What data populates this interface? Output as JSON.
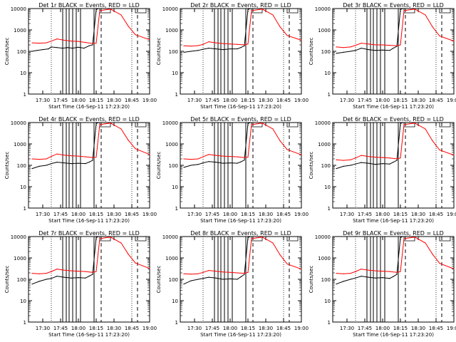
{
  "colors": {
    "events": "#000000",
    "lld": "#ff0000",
    "background": "#ffffff"
  },
  "shared": {
    "ylabel": "Counts/sec",
    "xlabel": "Start Time (16-Sep-11 17:23:20)",
    "x_ticks": [
      "17:30",
      "17:45",
      "18:00",
      "18:15",
      "18:30",
      "18:45",
      "19:00"
    ],
    "y_ticks": [
      "1",
      "10",
      "100",
      "1000",
      "10000"
    ],
    "ylim": [
      1,
      10000
    ],
    "y_scale": "log"
  },
  "chart_data": [
    {
      "type": "line",
      "title": "Det 1r BLACK = Events, RED = LLD",
      "series": [
        {
          "name": "Events",
          "x": [
            17.35,
            17.42,
            17.5,
            17.58,
            17.62,
            17.7,
            17.78,
            17.85,
            17.92,
            18.0,
            18.08,
            18.15,
            18.2,
            18.25,
            18.28
          ],
          "values": [
            100,
            110,
            120,
            130,
            160,
            150,
            140,
            150,
            140,
            155,
            140,
            180,
            200,
            9000,
            10000
          ]
        },
        {
          "name": "LLD",
          "x": [
            17.35,
            17.45,
            17.55,
            17.62,
            17.7,
            17.8,
            17.9,
            18.0,
            18.1,
            18.2,
            18.25,
            18.3,
            18.45,
            18.6,
            18.7,
            18.8,
            19.0
          ],
          "values": [
            250,
            240,
            250,
            300,
            380,
            330,
            300,
            290,
            260,
            230,
            240,
            8000,
            9500,
            5000,
            1500,
            600,
            350
          ]
        }
      ]
    },
    {
      "type": "line",
      "title": "Det 2r BLACK = Events, RED = LLD",
      "series": [
        {
          "name": "Events",
          "x": [
            17.35,
            17.45,
            17.55,
            17.62,
            17.7,
            17.8,
            17.9,
            18.0,
            18.1,
            18.15,
            18.2,
            18.25,
            18.28
          ],
          "values": [
            90,
            100,
            110,
            125,
            140,
            130,
            120,
            130,
            130,
            150,
            180,
            9000,
            10000
          ]
        },
        {
          "name": "LLD",
          "x": [
            17.35,
            17.45,
            17.55,
            17.62,
            17.7,
            17.8,
            17.9,
            18.0,
            18.1,
            18.2,
            18.25,
            18.3,
            18.45,
            18.6,
            18.7,
            18.8,
            19.0
          ],
          "values": [
            180,
            175,
            185,
            210,
            280,
            250,
            230,
            220,
            210,
            200,
            220,
            8000,
            9500,
            5000,
            1400,
            550,
            330
          ]
        }
      ]
    },
    {
      "type": "line",
      "title": "Det 3r BLACK = Events, RED = LLD",
      "series": [
        {
          "name": "Events",
          "x": [
            17.35,
            17.45,
            17.55,
            17.62,
            17.7,
            17.8,
            17.9,
            18.0,
            18.1,
            18.15,
            18.2,
            18.25,
            18.28
          ],
          "values": [
            80,
            90,
            100,
            110,
            140,
            120,
            110,
            115,
            110,
            140,
            170,
            9000,
            10000
          ]
        },
        {
          "name": "LLD",
          "x": [
            17.35,
            17.45,
            17.55,
            17.62,
            17.7,
            17.8,
            17.9,
            18.0,
            18.1,
            18.2,
            18.25,
            18.3,
            18.45,
            18.6,
            18.7,
            18.8,
            19.0
          ],
          "values": [
            160,
            150,
            160,
            190,
            240,
            220,
            200,
            200,
            190,
            180,
            200,
            8000,
            9500,
            5000,
            1400,
            520,
            300
          ]
        }
      ]
    },
    {
      "type": "line",
      "title": "Det 4r BLACK = Events, RED = LLD",
      "series": [
        {
          "name": "Events",
          "x": [
            17.35,
            17.45,
            17.55,
            17.62,
            17.7,
            17.8,
            17.9,
            18.0,
            18.1,
            18.15,
            18.2,
            18.25,
            18.28
          ],
          "values": [
            70,
            90,
            100,
            120,
            140,
            130,
            120,
            125,
            120,
            140,
            170,
            9000,
            10000
          ]
        },
        {
          "name": "LLD",
          "x": [
            17.35,
            17.45,
            17.55,
            17.62,
            17.7,
            17.8,
            17.9,
            18.0,
            18.1,
            18.2,
            18.25,
            18.3,
            18.45,
            18.6,
            18.7,
            18.8,
            19.0
          ],
          "values": [
            200,
            190,
            200,
            260,
            340,
            300,
            280,
            270,
            250,
            230,
            240,
            8000,
            9500,
            5000,
            1500,
            600,
            320
          ]
        }
      ]
    },
    {
      "type": "line",
      "title": "Det 5r BLACK = Events, RED = LLD",
      "series": [
        {
          "name": "Events",
          "x": [
            17.35,
            17.45,
            17.55,
            17.62,
            17.7,
            17.8,
            17.9,
            18.0,
            18.1,
            18.15,
            18.2,
            18.25,
            18.28
          ],
          "values": [
            80,
            100,
            110,
            130,
            150,
            140,
            125,
            130,
            125,
            145,
            175,
            9000,
            10000
          ]
        },
        {
          "name": "LLD",
          "x": [
            17.35,
            17.45,
            17.55,
            17.62,
            17.7,
            17.8,
            17.9,
            18.0,
            18.1,
            18.2,
            18.25,
            18.3,
            18.45,
            18.6,
            18.7,
            18.8,
            19.0
          ],
          "values": [
            200,
            190,
            200,
            250,
            320,
            290,
            270,
            260,
            250,
            230,
            240,
            8000,
            9500,
            5000,
            1400,
            550,
            310
          ]
        }
      ]
    },
    {
      "type": "line",
      "title": "Det 6r BLACK = Events, RED = LLD",
      "series": [
        {
          "name": "Events",
          "x": [
            17.35,
            17.45,
            17.55,
            17.62,
            17.7,
            17.8,
            17.9,
            18.0,
            18.1,
            18.15,
            18.2,
            18.25,
            18.28
          ],
          "values": [
            70,
            90,
            100,
            115,
            135,
            125,
            110,
            120,
            115,
            140,
            170,
            9000,
            10000
          ]
        },
        {
          "name": "LLD",
          "x": [
            17.35,
            17.45,
            17.55,
            17.62,
            17.7,
            17.8,
            17.9,
            18.0,
            18.1,
            18.2,
            18.25,
            18.3,
            18.45,
            18.6,
            18.7,
            18.8,
            19.0
          ],
          "values": [
            180,
            170,
            180,
            220,
            290,
            260,
            240,
            230,
            220,
            200,
            220,
            8000,
            9500,
            5000,
            1400,
            520,
            300
          ]
        }
      ]
    },
    {
      "type": "line",
      "title": "Det 7r BLACK = Events, RED = LLD",
      "series": [
        {
          "name": "Events",
          "x": [
            17.35,
            17.45,
            17.55,
            17.62,
            17.7,
            17.8,
            17.9,
            18.0,
            18.1,
            18.15,
            18.2,
            18.25,
            18.28
          ],
          "values": [
            60,
            80,
            100,
            110,
            140,
            125,
            115,
            120,
            115,
            140,
            170,
            9000,
            10000
          ]
        },
        {
          "name": "LLD",
          "x": [
            17.35,
            17.45,
            17.55,
            17.62,
            17.7,
            17.8,
            17.9,
            18.0,
            18.1,
            18.2,
            18.25,
            18.3,
            18.45,
            18.6,
            18.7,
            18.8,
            19.0
          ],
          "values": [
            190,
            180,
            190,
            230,
            300,
            270,
            250,
            240,
            230,
            210,
            230,
            8000,
            9500,
            5000,
            1500,
            580,
            320
          ]
        }
      ]
    },
    {
      "type": "line",
      "title": "Det 8r BLACK = Events, RED = LLD",
      "series": [
        {
          "name": "Events",
          "x": [
            17.35,
            17.45,
            17.55,
            17.62,
            17.7,
            17.8,
            17.9,
            18.0,
            18.1,
            18.15,
            18.2,
            18.25,
            18.28
          ],
          "values": [
            60,
            85,
            100,
            110,
            125,
            115,
            100,
            105,
            100,
            130,
            170,
            9000,
            10000
          ]
        },
        {
          "name": "LLD",
          "x": [
            17.35,
            17.45,
            17.55,
            17.62,
            17.7,
            17.8,
            17.9,
            18.0,
            18.1,
            18.2,
            18.25,
            18.3,
            18.45,
            18.6,
            18.7,
            18.8,
            19.0
          ],
          "values": [
            180,
            175,
            180,
            210,
            260,
            240,
            220,
            210,
            200,
            190,
            210,
            8000,
            9500,
            5000,
            1400,
            520,
            300
          ]
        }
      ]
    },
    {
      "type": "line",
      "title": "Det 9r BLACK = Events, RED = LLD",
      "series": [
        {
          "name": "Events",
          "x": [
            17.35,
            17.45,
            17.55,
            17.62,
            17.7,
            17.8,
            17.9,
            18.0,
            18.1,
            18.15,
            18.2,
            18.25,
            18.28
          ],
          "values": [
            60,
            80,
            100,
            115,
            140,
            125,
            115,
            120,
            110,
            135,
            170,
            9000,
            10000
          ]
        },
        {
          "name": "LLD",
          "x": [
            17.35,
            17.45,
            17.55,
            17.62,
            17.7,
            17.8,
            17.9,
            18.0,
            18.1,
            18.2,
            18.25,
            18.3,
            18.45,
            18.6,
            18.7,
            18.8,
            19.0
          ],
          "values": [
            190,
            180,
            190,
            230,
            300,
            270,
            250,
            240,
            230,
            210,
            230,
            8000,
            9500,
            5000,
            1500,
            560,
            310
          ]
        }
      ]
    }
  ],
  "markers": {
    "solid_x": [
      17.78,
      17.83,
      17.87,
      17.92,
      17.97,
      18.03,
      18.22
    ],
    "dotted_x": [
      17.62,
      18.75
    ],
    "dashed_x": [
      18.32,
      18.83
    ],
    "attenuator_x": [
      [
        18.3,
        18.45
      ],
      [
        18.8,
        18.95
      ]
    ]
  }
}
